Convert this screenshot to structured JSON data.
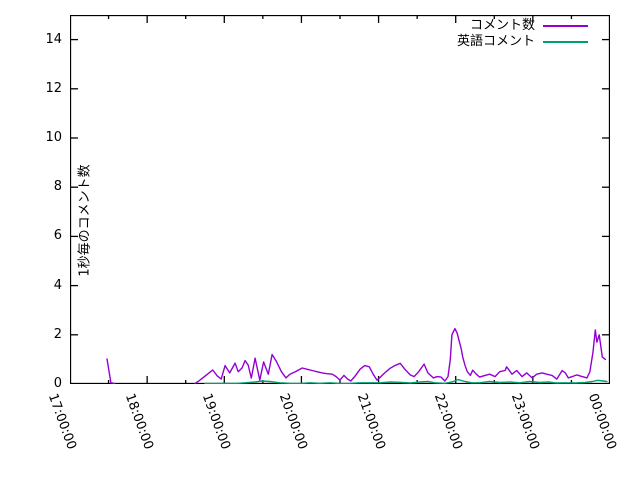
{
  "chart_data": {
    "type": "line",
    "title": "",
    "ylabel": "1秒毎のコメント数",
    "xlabel": "",
    "grid": false,
    "legend_position": "top-right-inside",
    "xlim": [
      17,
      24
    ],
    "ylim": [
      0,
      15
    ],
    "y_ticks": [
      0,
      2,
      4,
      6,
      8,
      10,
      12,
      14
    ],
    "x_major_ticks": [
      {
        "hour": 17,
        "label": "17:00:00"
      },
      {
        "hour": 18,
        "label": "18:00:00"
      },
      {
        "hour": 19,
        "label": "19:00:00"
      },
      {
        "hour": 20,
        "label": "20:00:00"
      },
      {
        "hour": 21,
        "label": "21:00:00"
      },
      {
        "hour": 22,
        "label": "22:00:00"
      },
      {
        "hour": 23,
        "label": "23:00:00"
      },
      {
        "hour": 24,
        "label": "00:00:00"
      }
    ],
    "x_minor_tick_hours": [
      17.5,
      18.5,
      19.5,
      20.5,
      21.5,
      22.5,
      23.5
    ],
    "series": [
      {
        "name": "コメント数",
        "color": "#9400d3",
        "segments": [
          [
            [
              17.48,
              1.02
            ],
            [
              17.53,
              0.05
            ],
            [
              17.58,
              0.02
            ]
          ],
          [
            [
              18.62,
              0.02
            ],
            [
              18.66,
              0.1
            ],
            [
              18.72,
              0.25
            ],
            [
              18.79,
              0.42
            ],
            [
              18.85,
              0.57
            ],
            [
              18.91,
              0.33
            ],
            [
              18.96,
              0.2
            ],
            [
              19.01,
              0.75
            ],
            [
              19.07,
              0.45
            ],
            [
              19.14,
              0.85
            ],
            [
              19.18,
              0.5
            ],
            [
              19.23,
              0.65
            ],
            [
              19.27,
              0.95
            ],
            [
              19.31,
              0.77
            ],
            [
              19.35,
              0.24
            ],
            [
              19.4,
              1.05
            ],
            [
              19.46,
              0.16
            ],
            [
              19.51,
              0.9
            ],
            [
              19.57,
              0.4
            ],
            [
              19.62,
              1.2
            ],
            [
              19.68,
              0.9
            ],
            [
              19.74,
              0.5
            ],
            [
              19.8,
              0.25
            ],
            [
              19.85,
              0.4
            ],
            [
              19.92,
              0.5
            ],
            [
              20.01,
              0.65
            ],
            [
              20.07,
              0.6
            ],
            [
              20.14,
              0.55
            ],
            [
              20.2,
              0.5
            ],
            [
              20.27,
              0.45
            ],
            [
              20.33,
              0.42
            ],
            [
              20.4,
              0.4
            ],
            [
              20.45,
              0.3
            ],
            [
              20.5,
              0.16
            ],
            [
              20.55,
              0.35
            ],
            [
              20.6,
              0.2
            ],
            [
              20.64,
              0.12
            ],
            [
              20.69,
              0.3
            ],
            [
              20.76,
              0.6
            ],
            [
              20.82,
              0.75
            ],
            [
              20.88,
              0.7
            ],
            [
              20.93,
              0.4
            ],
            [
              20.98,
              0.16
            ],
            [
              21.03,
              0.3
            ],
            [
              21.08,
              0.45
            ],
            [
              21.15,
              0.64
            ],
            [
              21.21,
              0.75
            ],
            [
              21.28,
              0.84
            ],
            [
              21.34,
              0.6
            ],
            [
              21.41,
              0.37
            ],
            [
              21.46,
              0.3
            ],
            [
              21.52,
              0.5
            ],
            [
              21.59,
              0.81
            ],
            [
              21.64,
              0.45
            ],
            [
              21.71,
              0.25
            ],
            [
              21.76,
              0.3
            ],
            [
              21.81,
              0.28
            ],
            [
              21.86,
              0.12
            ],
            [
              21.9,
              0.3
            ],
            [
              21.93,
              1.0
            ],
            [
              21.95,
              2.0
            ],
            [
              21.99,
              2.25
            ],
            [
              22.02,
              2.05
            ],
            [
              22.04,
              1.8
            ],
            [
              22.07,
              1.45
            ],
            [
              22.09,
              1.1
            ],
            [
              22.12,
              0.76
            ],
            [
              22.15,
              0.5
            ],
            [
              22.19,
              0.35
            ],
            [
              22.22,
              0.56
            ],
            [
              22.26,
              0.42
            ],
            [
              22.31,
              0.28
            ],
            [
              22.38,
              0.35
            ],
            [
              22.44,
              0.4
            ],
            [
              22.51,
              0.3
            ],
            [
              22.57,
              0.5
            ],
            [
              22.64,
              0.55
            ],
            [
              22.66,
              0.7
            ],
            [
              22.73,
              0.4
            ],
            [
              22.79,
              0.55
            ],
            [
              22.86,
              0.3
            ],
            [
              22.92,
              0.45
            ],
            [
              22.99,
              0.25
            ],
            [
              23.05,
              0.4
            ],
            [
              23.12,
              0.45
            ],
            [
              23.18,
              0.4
            ],
            [
              23.25,
              0.35
            ],
            [
              23.31,
              0.2
            ],
            [
              23.38,
              0.55
            ],
            [
              23.42,
              0.45
            ],
            [
              23.46,
              0.25
            ],
            [
              23.51,
              0.3
            ],
            [
              23.57,
              0.37
            ],
            [
              23.64,
              0.3
            ],
            [
              23.7,
              0.25
            ],
            [
              23.74,
              0.5
            ],
            [
              23.78,
              1.3
            ],
            [
              23.81,
              2.2
            ],
            [
              23.83,
              1.7
            ],
            [
              23.86,
              2.0
            ],
            [
              23.9,
              1.1
            ],
            [
              23.94,
              1.0
            ]
          ]
        ]
      },
      {
        "name": "英語コメント",
        "color": "#009e73",
        "segments": [
          [
            [
              18.75,
              0.02
            ],
            [
              18.88,
              0.02
            ],
            [
              19.01,
              0.03
            ],
            [
              19.14,
              0.02
            ],
            [
              19.27,
              0.05
            ],
            [
              19.4,
              0.08
            ],
            [
              19.49,
              0.12
            ],
            [
              19.59,
              0.1
            ],
            [
              19.72,
              0.05
            ],
            [
              19.85,
              0.03
            ],
            [
              19.98,
              0.02
            ],
            [
              20.11,
              0.05
            ],
            [
              20.24,
              0.03
            ],
            [
              20.37,
              0.05
            ],
            [
              20.5,
              0.02
            ],
            [
              20.63,
              0.03
            ],
            [
              20.76,
              0.05
            ],
            [
              20.89,
              0.05
            ],
            [
              21.02,
              0.05
            ],
            [
              21.15,
              0.08
            ],
            [
              21.28,
              0.07
            ],
            [
              21.41,
              0.04
            ],
            [
              21.54,
              0.08
            ],
            [
              21.64,
              0.1
            ],
            [
              21.73,
              0.05
            ],
            [
              21.86,
              0.03
            ],
            [
              21.95,
              0.08
            ],
            [
              22.03,
              0.18
            ],
            [
              22.12,
              0.1
            ],
            [
              22.21,
              0.05
            ],
            [
              22.31,
              0.05
            ],
            [
              22.44,
              0.1
            ],
            [
              22.57,
              0.06
            ],
            [
              22.7,
              0.08
            ],
            [
              22.83,
              0.05
            ],
            [
              22.96,
              0.1
            ],
            [
              23.09,
              0.06
            ],
            [
              23.2,
              0.08
            ],
            [
              23.3,
              0.04
            ],
            [
              23.42,
              0.05
            ],
            [
              23.55,
              0.04
            ],
            [
              23.68,
              0.06
            ],
            [
              23.77,
              0.1
            ],
            [
              23.84,
              0.15
            ],
            [
              23.91,
              0.12
            ],
            [
              23.96,
              0.1
            ]
          ]
        ]
      }
    ]
  }
}
